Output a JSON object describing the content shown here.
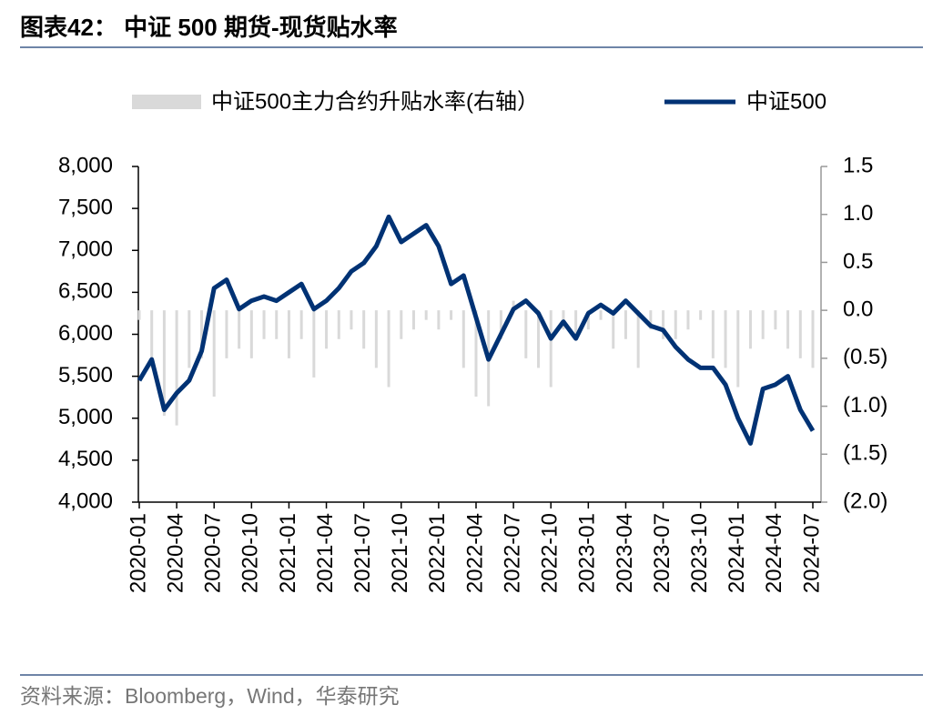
{
  "title": "图表42：  中证 500 期货-现货贴水率",
  "source": "资料来源：Bloomberg，Wind，华泰研究",
  "chart_data": {
    "type": "combo",
    "categories": [
      "2020-01",
      "2020-02",
      "2020-03",
      "2020-04",
      "2020-05",
      "2020-06",
      "2020-07",
      "2020-08",
      "2020-09",
      "2020-10",
      "2020-11",
      "2020-12",
      "2021-01",
      "2021-02",
      "2021-03",
      "2021-04",
      "2021-05",
      "2021-06",
      "2021-07",
      "2021-08",
      "2021-09",
      "2021-10",
      "2021-11",
      "2021-12",
      "2022-01",
      "2022-02",
      "2022-03",
      "2022-04",
      "2022-05",
      "2022-06",
      "2022-07",
      "2022-08",
      "2022-09",
      "2022-10",
      "2022-11",
      "2022-12",
      "2023-01",
      "2023-02",
      "2023-03",
      "2023-04",
      "2023-05",
      "2023-06",
      "2023-07",
      "2023-08",
      "2023-09",
      "2023-10",
      "2023-11",
      "2023-12",
      "2024-01",
      "2024-02",
      "2024-03",
      "2024-04",
      "2024-05",
      "2024-06",
      "2024-07"
    ],
    "series": [
      {
        "name": "中证500主力合约升贴水率(右轴）",
        "type": "bar",
        "axis": "y2",
        "color": "#d9d9d9",
        "values": [
          -0.1,
          -0.6,
          -1.1,
          -1.2,
          -0.6,
          -0.5,
          -0.9,
          -0.5,
          -0.4,
          -0.5,
          -0.3,
          -0.3,
          -0.5,
          -0.3,
          -0.7,
          -0.4,
          -0.3,
          -0.2,
          -0.4,
          -0.6,
          -0.8,
          -0.3,
          -0.2,
          -0.1,
          -0.2,
          -0.1,
          -0.6,
          -0.9,
          -1.0,
          -0.3,
          0.1,
          -0.5,
          -0.6,
          -0.8,
          -0.2,
          -0.3,
          -0.2,
          -0.1,
          -0.4,
          -0.3,
          -0.6,
          -0.2,
          -0.3,
          -0.3,
          -0.2,
          -0.1,
          -0.5,
          -0.6,
          -0.8,
          -0.4,
          -0.3,
          -0.2,
          -0.4,
          -0.5,
          -0.6
        ]
      },
      {
        "name": "中证500",
        "type": "line",
        "color": "#003274",
        "values": [
          5450,
          5700,
          5100,
          5300,
          5450,
          5800,
          6550,
          6650,
          6300,
          6400,
          6450,
          6400,
          6500,
          6600,
          6300,
          6400,
          6550,
          6750,
          6850,
          7050,
          7400,
          7100,
          7200,
          7300,
          7050,
          6600,
          6700,
          6200,
          5700,
          6000,
          6300,
          6400,
          6250,
          5950,
          6150,
          5950,
          6250,
          6350,
          6250,
          6400,
          6250,
          6100,
          6050,
          5850,
          5700,
          5600,
          5600,
          5400,
          5000,
          4700,
          5350,
          5400,
          5500,
          5100,
          4850
        ]
      }
    ],
    "ylim": [
      4000,
      8000
    ],
    "yticks": [
      {
        "value": 4000,
        "label": "4,000"
      },
      {
        "value": 4500,
        "label": "4,500"
      },
      {
        "value": 5000,
        "label": "5,000"
      },
      {
        "value": 5500,
        "label": "5,500"
      },
      {
        "value": 6000,
        "label": "6,000"
      },
      {
        "value": 6500,
        "label": "6,500"
      },
      {
        "value": 7000,
        "label": "7,000"
      },
      {
        "value": 7500,
        "label": "7,500"
      },
      {
        "value": 8000,
        "label": "8,000"
      }
    ],
    "y2lim": [
      -2.0,
      1.5
    ],
    "y2ticks": [
      1.5,
      {
        "value": 1.0,
        "label": "1.0"
      },
      0.5,
      {
        "value": 0,
        "label": "0.0"
      },
      {
        "value": -0.5,
        "label": "(0.5)"
      },
      {
        "value": -1.0,
        "label": "(1.0)"
      },
      {
        "value": -1.5,
        "label": "(1.5)"
      },
      {
        "value": -2.0,
        "label": "(2.0)"
      }
    ],
    "grid": false
  }
}
